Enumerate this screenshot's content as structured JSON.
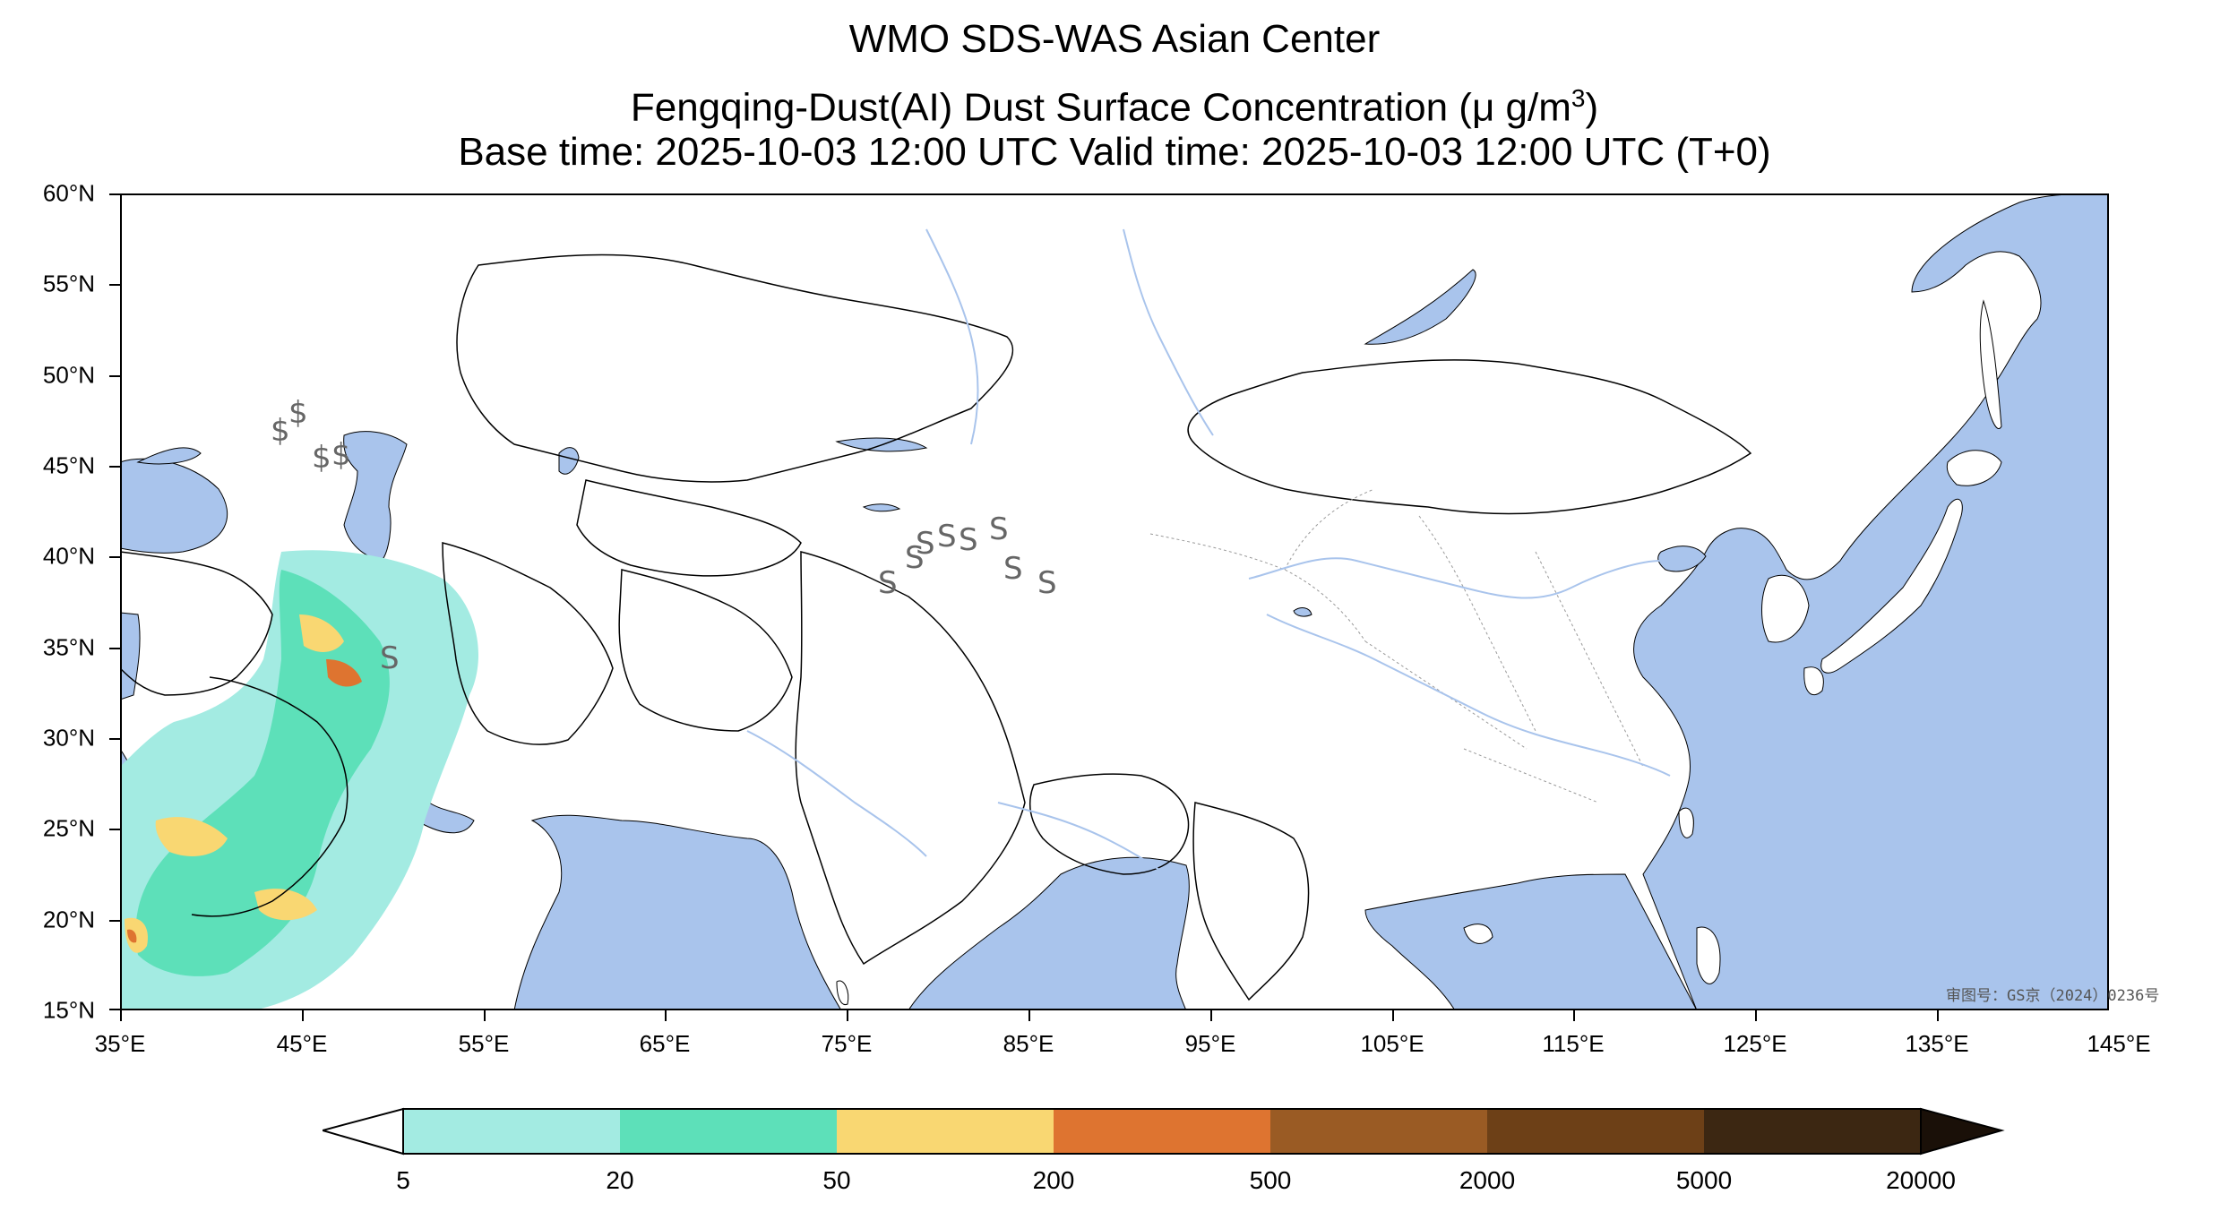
{
  "title": {
    "line1": "WMO SDS-WAS Asian Center",
    "line2_prefix": "Fengqing-Dust(AI) Dust Surface Concentration (",
    "line2_unit": "μ g/m",
    "line2_exp": "3",
    "line2_suffix": ")",
    "line3": "Base time: 2025-10-03 12:00 UTC Valid time: 2025-10-03 12:00 UTC (T+0)"
  },
  "map": {
    "extent": {
      "lon": [
        35,
        150
      ],
      "lat": [
        15,
        60
      ]
    },
    "lat_ticks": [
      "60°N",
      "55°N",
      "50°N",
      "45°N",
      "40°N",
      "35°N",
      "30°N",
      "25°N",
      "20°N",
      "15°N"
    ],
    "lon_ticks": [
      "35°E",
      "45°E",
      "55°E",
      "65°E",
      "75°E",
      "85°E",
      "95°E",
      "105°E",
      "115°E",
      "125°E",
      "135°E",
      "145°E"
    ],
    "colors": {
      "ocean": "#a9c4ec",
      "land": "#ffffff",
      "border": "#000000",
      "river": "#a9c4ec"
    },
    "watermark": "审图号：GS京（2024）0236号",
    "dust_symbol": "S",
    "station_symbol": "$"
  },
  "colorbar": {
    "levels": [
      "5",
      "20",
      "50",
      "200",
      "500",
      "2000",
      "5000",
      "20000"
    ],
    "colors": [
      "#ffffff",
      "#a3ebe2",
      "#5de0b9",
      "#f9d772",
      "#de7430",
      "#9a5b24",
      "#6d4017",
      "#3c2712",
      "#1a1008"
    ]
  }
}
